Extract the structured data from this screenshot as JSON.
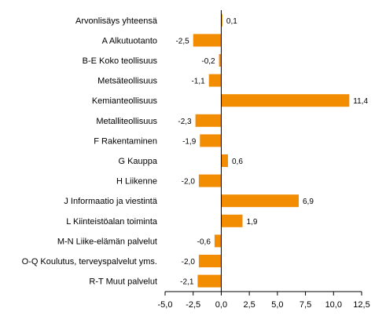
{
  "chart_data": {
    "type": "bar",
    "orientation": "horizontal",
    "categories": [
      "Arvonlisäys yhteensä",
      "A Alkutuotanto",
      "B-E Koko teollisuus",
      "Metsäteollisuus",
      "Kemianteollisuus",
      "Metalliteollisuus",
      "F Rakentaminen",
      "G Kauppa",
      "H Liikenne",
      "J Informaatio ja viestintä",
      "L Kiinteistöalan toiminta",
      "M-N Liike-elämän palvelut",
      "O-Q Koulutus, terveyspalvelut yms.",
      "R-T Muut palvelut"
    ],
    "values": [
      0.1,
      -2.5,
      -0.2,
      -1.1,
      11.4,
      -2.3,
      -1.9,
      0.6,
      -2.0,
      6.9,
      1.9,
      -0.6,
      -2.0,
      -2.1
    ],
    "value_labels": [
      "0,1",
      "-2,5",
      "-0,2",
      "-1,1",
      "11,4",
      "-2,3",
      "-1,9",
      "0,6",
      "-2,0",
      "6,9",
      "1,9",
      "-0,6",
      "-2,0",
      "-2,1"
    ],
    "xlim": [
      -5.0,
      12.5
    ],
    "xticks": [
      -5.0,
      -2.5,
      0.0,
      2.5,
      5.0,
      7.5,
      10.0,
      12.5
    ],
    "xtick_labels": [
      "-5,0",
      "-2,5",
      "0,0",
      "2,5",
      "5,0",
      "7,5",
      "10,0",
      "12,5"
    ],
    "title": "",
    "xlabel": "",
    "ylabel": "",
    "grid": false,
    "bar_color": "#F28C00",
    "axis_color": "#000000"
  }
}
